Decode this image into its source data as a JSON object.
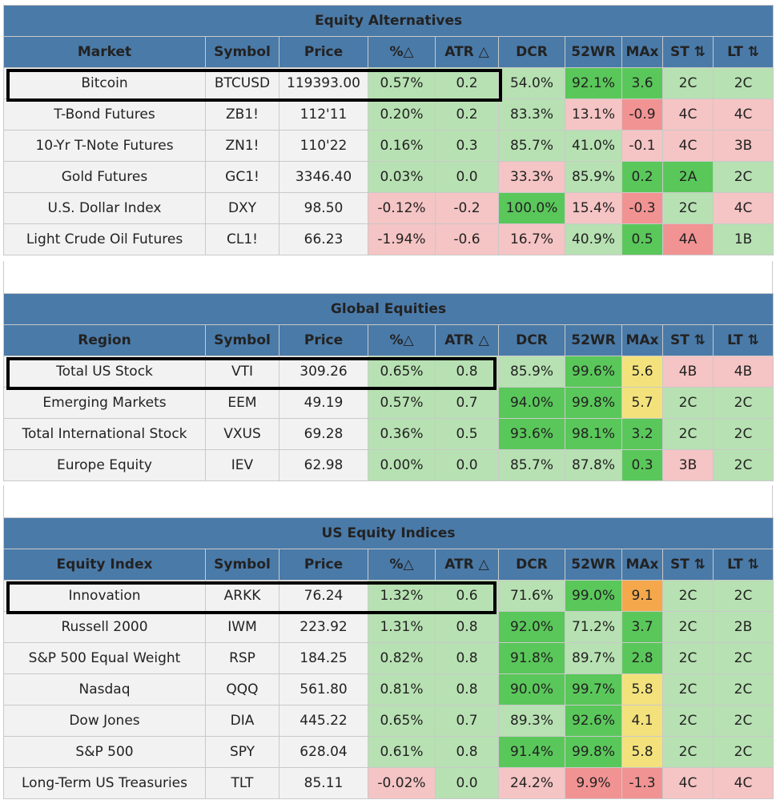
{
  "colors": {
    "header_blue": "#4a7aa8",
    "light_green": "#b7e1b2",
    "strong_green": "#5ac75a",
    "light_red": "#f5c4c4",
    "strong_red": "#f29393",
    "yellow": "#f3e27c",
    "orange": "#f4a84b"
  },
  "sections": [
    {
      "title": "Equity Alternatives",
      "columns": [
        "Market",
        "Symbol",
        "Price",
        "%△",
        "ATR △",
        "DCR",
        "52WR",
        "MAx",
        "ST ⇅",
        "LT ⇅"
      ],
      "rows": [
        {
          "name": "Bitcoin",
          "symbol": "BTCUSD",
          "price": "119393.00",
          "pct": "0.57%",
          "atr": "0.2",
          "dcr": "54.0%",
          "wr": "92.1%",
          "max": "3.6",
          "st": "2C",
          "lt": "2C",
          "c": {
            "pct": "g1",
            "atr": "g1",
            "dcr": "g1",
            "wr": "g2",
            "max": "g2",
            "st": "g1",
            "lt": "g1"
          }
        },
        {
          "name": "T-Bond Futures",
          "symbol": "ZB1!",
          "price": "112'11",
          "pct": "0.20%",
          "atr": "0.2",
          "dcr": "83.3%",
          "wr": "13.1%",
          "max": "-0.9",
          "st": "4C",
          "lt": "4C",
          "c": {
            "pct": "g1",
            "atr": "g1",
            "dcr": "g1",
            "wr": "r1",
            "max": "r2",
            "st": "r1",
            "lt": "r1"
          }
        },
        {
          "name": "10-Yr T-Note Futures",
          "symbol": "ZN1!",
          "price": "110'22",
          "pct": "0.16%",
          "atr": "0.3",
          "dcr": "85.7%",
          "wr": "41.0%",
          "max": "-0.1",
          "st": "4C",
          "lt": "3B",
          "c": {
            "pct": "g1",
            "atr": "g1",
            "dcr": "g1",
            "wr": "g1",
            "max": "r1",
            "st": "r1",
            "lt": "r1"
          }
        },
        {
          "name": "Gold Futures",
          "symbol": "GC1!",
          "price": "3346.40",
          "pct": "0.03%",
          "atr": "0.0",
          "dcr": "33.3%",
          "wr": "85.9%",
          "max": "0.2",
          "st": "2A",
          "lt": "2C",
          "c": {
            "pct": "g1",
            "atr": "g1",
            "dcr": "r1",
            "wr": "g1",
            "max": "g2",
            "st": "g2",
            "lt": "g1"
          }
        },
        {
          "name": "U.S. Dollar Index",
          "symbol": "DXY",
          "price": "98.50",
          "pct": "-0.12%",
          "atr": "-0.2",
          "dcr": "100.0%",
          "wr": "15.4%",
          "max": "-0.3",
          "st": "2C",
          "lt": "4C",
          "c": {
            "pct": "r1",
            "atr": "r1",
            "dcr": "g2",
            "wr": "r1",
            "max": "r2",
            "st": "g1",
            "lt": "r1"
          }
        },
        {
          "name": "Light Crude Oil Futures",
          "symbol": "CL1!",
          "price": "66.23",
          "pct": "-1.94%",
          "atr": "-0.6",
          "dcr": "16.7%",
          "wr": "40.9%",
          "max": "0.5",
          "st": "4A",
          "lt": "1B",
          "c": {
            "pct": "r1",
            "atr": "r1",
            "dcr": "r1",
            "wr": "g1",
            "max": "g2",
            "st": "r2",
            "lt": "g1"
          }
        }
      ]
    },
    {
      "title": "Global Equities",
      "columns": [
        "Region",
        "Symbol",
        "Price",
        "%△",
        "ATR △",
        "DCR",
        "52WR",
        "MAx",
        "ST ⇅",
        "LT ⇅"
      ],
      "rows": [
        {
          "name": "Total US Stock",
          "symbol": "VTI",
          "price": "309.26",
          "pct": "0.65%",
          "atr": "0.8",
          "dcr": "85.9%",
          "wr": "99.6%",
          "max": "5.6",
          "st": "4B",
          "lt": "4B",
          "c": {
            "pct": "g1",
            "atr": "g1",
            "dcr": "g1",
            "wr": "g2",
            "max": "y1",
            "st": "r1",
            "lt": "r1"
          }
        },
        {
          "name": "Emerging Markets",
          "symbol": "EEM",
          "price": "49.19",
          "pct": "0.57%",
          "atr": "0.7",
          "dcr": "94.0%",
          "wr": "99.8%",
          "max": "5.7",
          "st": "2C",
          "lt": "2C",
          "c": {
            "pct": "g1",
            "atr": "g1",
            "dcr": "g2",
            "wr": "g2",
            "max": "y1",
            "st": "g1",
            "lt": "g1"
          }
        },
        {
          "name": "Total International Stock",
          "symbol": "VXUS",
          "price": "69.28",
          "pct": "0.36%",
          "atr": "0.5",
          "dcr": "93.6%",
          "wr": "98.1%",
          "max": "3.2",
          "st": "2C",
          "lt": "2C",
          "c": {
            "pct": "g1",
            "atr": "g1",
            "dcr": "g2",
            "wr": "g2",
            "max": "g2",
            "st": "g1",
            "lt": "g1"
          }
        },
        {
          "name": "Europe Equity",
          "symbol": "IEV",
          "price": "62.98",
          "pct": "0.00%",
          "atr": "0.0",
          "dcr": "85.7%",
          "wr": "87.8%",
          "max": "0.3",
          "st": "3B",
          "lt": "2C",
          "c": {
            "pct": "g1",
            "atr": "g1",
            "dcr": "g1",
            "wr": "g1",
            "max": "g2",
            "st": "r1",
            "lt": "g1"
          }
        }
      ]
    },
    {
      "title": "US Equity Indices",
      "columns": [
        "Equity Index",
        "Symbol",
        "Price",
        "%△",
        "ATR △",
        "DCR",
        "52WR",
        "MAx",
        "ST ⇅",
        "LT ⇅"
      ],
      "rows": [
        {
          "name": "Innovation",
          "symbol": "ARKK",
          "price": "76.24",
          "pct": "1.32%",
          "atr": "0.6",
          "dcr": "71.6%",
          "wr": "99.0%",
          "max": "9.1",
          "st": "2C",
          "lt": "2C",
          "c": {
            "pct": "g1",
            "atr": "g1",
            "dcr": "g1",
            "wr": "g2",
            "max": "o1",
            "st": "g1",
            "lt": "g1"
          }
        },
        {
          "name": "Russell 2000",
          "symbol": "IWM",
          "price": "223.92",
          "pct": "1.31%",
          "atr": "0.8",
          "dcr": "92.0%",
          "wr": "71.2%",
          "max": "3.7",
          "st": "2C",
          "lt": "2B",
          "c": {
            "pct": "g1",
            "atr": "g1",
            "dcr": "g2",
            "wr": "g1",
            "max": "g2",
            "st": "g1",
            "lt": "g1"
          }
        },
        {
          "name": "S&P 500 Equal Weight",
          "symbol": "RSP",
          "price": "184.25",
          "pct": "0.82%",
          "atr": "0.8",
          "dcr": "91.8%",
          "wr": "89.7%",
          "max": "2.8",
          "st": "2C",
          "lt": "2C",
          "c": {
            "pct": "g1",
            "atr": "g1",
            "dcr": "g2",
            "wr": "g1",
            "max": "g2",
            "st": "g1",
            "lt": "g1"
          }
        },
        {
          "name": "Nasdaq",
          "symbol": "QQQ",
          "price": "561.80",
          "pct": "0.81%",
          "atr": "0.8",
          "dcr": "90.0%",
          "wr": "99.7%",
          "max": "5.8",
          "st": "2C",
          "lt": "2C",
          "c": {
            "pct": "g1",
            "atr": "g1",
            "dcr": "g2",
            "wr": "g2",
            "max": "y1",
            "st": "g1",
            "lt": "g1"
          }
        },
        {
          "name": "Dow Jones",
          "symbol": "DIA",
          "price": "445.22",
          "pct": "0.65%",
          "atr": "0.7",
          "dcr": "89.3%",
          "wr": "92.6%",
          "max": "4.1",
          "st": "2C",
          "lt": "2C",
          "c": {
            "pct": "g1",
            "atr": "g1",
            "dcr": "g1",
            "wr": "g2",
            "max": "y1",
            "st": "g1",
            "lt": "g1"
          }
        },
        {
          "name": "S&P 500",
          "symbol": "SPY",
          "price": "628.04",
          "pct": "0.61%",
          "atr": "0.8",
          "dcr": "91.4%",
          "wr": "99.8%",
          "max": "5.8",
          "st": "2C",
          "lt": "2C",
          "c": {
            "pct": "g1",
            "atr": "g1",
            "dcr": "g2",
            "wr": "g2",
            "max": "y1",
            "st": "g1",
            "lt": "g1"
          }
        },
        {
          "name": "Long-Term US Treasuries",
          "symbol": "TLT",
          "price": "85.11",
          "pct": "-0.02%",
          "atr": "0.0",
          "dcr": "24.2%",
          "wr": "9.9%",
          "max": "-1.3",
          "st": "4C",
          "lt": "4C",
          "c": {
            "pct": "r1",
            "atr": "g1",
            "dcr": "r1",
            "wr": "r2",
            "max": "r2",
            "st": "r1",
            "lt": "r1"
          }
        }
      ]
    }
  ]
}
